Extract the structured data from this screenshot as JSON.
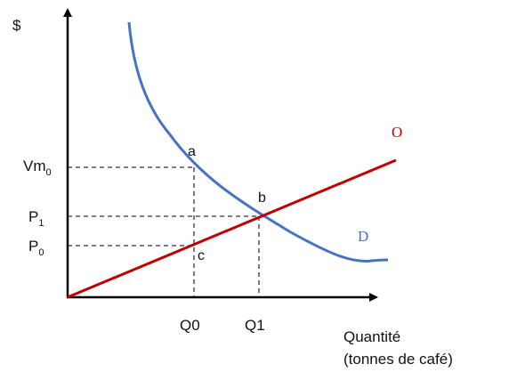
{
  "diagram": {
    "y_axis_label": "$",
    "x_axis_label_line1": "Quantité",
    "x_axis_label_line2": "(tonnes de café)",
    "price_labels": {
      "vm": {
        "base": "Vm",
        "sub": "0"
      },
      "p1": {
        "base": "P",
        "sub": "1"
      },
      "p0": {
        "base": "P",
        "sub": "0"
      }
    },
    "quantity_labels": {
      "q0": "Q0",
      "q1": "Q1"
    },
    "points": {
      "a": "a",
      "b": "b",
      "c": "c"
    },
    "curves": {
      "supply": {
        "label": "O",
        "color": "#c00000"
      },
      "demand": {
        "label": "D",
        "color": "#4472c4"
      }
    },
    "axis_color": "#000000"
  }
}
